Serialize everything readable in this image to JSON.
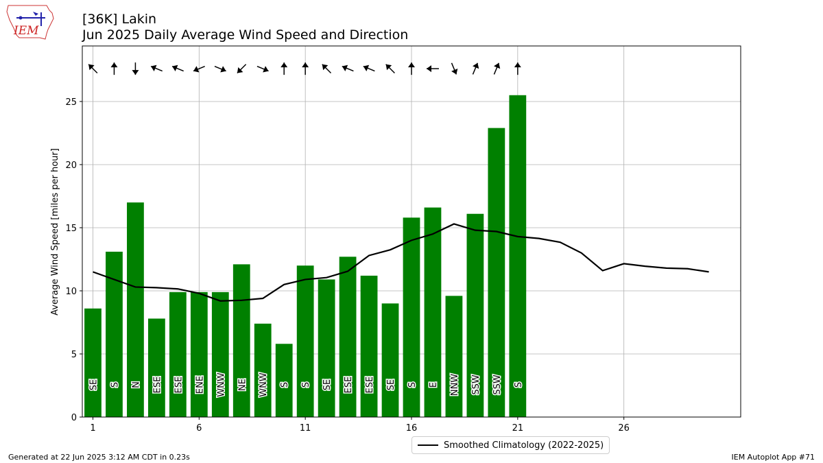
{
  "header": {
    "logo_text": "IEM",
    "title_line1": "[36K] Lakin",
    "title_line2": "Jun 2025 Daily Average Wind Speed and Direction"
  },
  "footer": {
    "generated": "Generated at 22 Jun 2025 3:12 AM CDT in 0.23s",
    "app": "IEM Autoplot App #71"
  },
  "legend": {
    "climatology_label": "Smoothed Climatology (2022-2025)"
  },
  "colors": {
    "bar": "#008000",
    "climatology_line": "#000000",
    "grid": "#b0b0b0"
  },
  "chart_data": {
    "type": "bar",
    "ylabel": "Average Wind Speed [miles per hour]",
    "xlabel": "",
    "xlim": [
      0.5,
      31.5
    ],
    "ylim": [
      0,
      29.4
    ],
    "xticks": [
      1,
      6,
      11,
      16,
      21,
      26
    ],
    "yticks": [
      0,
      5,
      10,
      15,
      20,
      25
    ],
    "grid": true,
    "legend_position": "bottom-center",
    "series": [
      {
        "kind": "bar",
        "days": [
          1,
          2,
          3,
          4,
          5,
          6,
          7,
          8,
          9,
          10,
          11,
          12,
          13,
          14,
          15,
          16,
          17,
          18,
          19,
          20,
          21
        ],
        "values": [
          8.6,
          13.1,
          17.0,
          7.8,
          9.9,
          9.9,
          9.9,
          12.1,
          7.4,
          5.8,
          12.0,
          10.9,
          12.7,
          11.2,
          9.0,
          15.8,
          16.6,
          9.6,
          16.1,
          22.9,
          25.5
        ],
        "direction_labels": [
          "SE",
          "S",
          "N",
          "ESE",
          "ESE",
          "ENE",
          "WNW",
          "NE",
          "WNW",
          "S",
          "S",
          "SE",
          "ESE",
          "ESE",
          "SE",
          "S",
          "E",
          "NNW",
          "SSW",
          "SSW",
          "S"
        ]
      },
      {
        "kind": "line",
        "name": "Smoothed Climatology (2022-2025)",
        "days": [
          1,
          2,
          3,
          4,
          5,
          6,
          7,
          8,
          9,
          10,
          11,
          12,
          13,
          14,
          15,
          16,
          17,
          18,
          19,
          20,
          21,
          22,
          23,
          24,
          25,
          26,
          27,
          28,
          29,
          30
        ],
        "values": [
          11.5,
          10.9,
          10.3,
          10.25,
          10.15,
          9.8,
          9.2,
          9.25,
          9.4,
          10.5,
          10.9,
          11.05,
          11.55,
          12.8,
          13.25,
          14.0,
          14.5,
          15.3,
          14.8,
          14.7,
          14.3,
          14.15,
          13.85,
          13.0,
          11.6,
          12.15,
          11.95,
          11.8,
          11.75,
          11.5
        ]
      }
    ]
  }
}
